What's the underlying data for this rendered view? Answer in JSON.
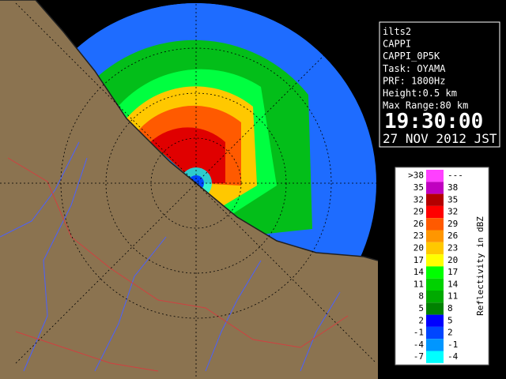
{
  "info": {
    "lines": [
      "ilts2",
      "CAPPI",
      "CAPPI_0P5K",
      "Task: OYAMA",
      "PRF: 1800Hz",
      "Height:0.5 km",
      "Max Range:80 km"
    ],
    "time": "19:30:00",
    "date": "27 NOV 2012 JST"
  },
  "legend": {
    "title": "Reflectivity in dBZ",
    "rows": [
      {
        "low": ">38",
        "high": "---",
        "color": "#ff40ff"
      },
      {
        "low": "35",
        "high": "38",
        "color": "#c000c0"
      },
      {
        "low": "32",
        "high": "35",
        "color": "#b40000"
      },
      {
        "low": "29",
        "high": "32",
        "color": "#ff0000"
      },
      {
        "low": "26",
        "high": "29",
        "color": "#ff5a00"
      },
      {
        "low": "23",
        "high": "26",
        "color": "#ff9600"
      },
      {
        "low": "20",
        "high": "23",
        "color": "#ffc800"
      },
      {
        "low": "17",
        "high": "20",
        "color": "#ffff00"
      },
      {
        "low": "14",
        "high": "17",
        "color": "#00ff00"
      },
      {
        "low": "11",
        "high": "14",
        "color": "#00d200"
      },
      {
        "low": "8",
        "high": "11",
        "color": "#00aa00"
      },
      {
        "low": "5",
        "high": "8",
        "color": "#008200"
      },
      {
        "low": "2",
        "high": "5",
        "color": "#0000ff"
      },
      {
        "low": "-1",
        "high": "2",
        "color": "#0046ff"
      },
      {
        "low": "-4",
        "high": "-1",
        "color": "#0096ff"
      },
      {
        "low": "-7",
        "high": "-4",
        "color": "#00ffff"
      }
    ]
  }
}
